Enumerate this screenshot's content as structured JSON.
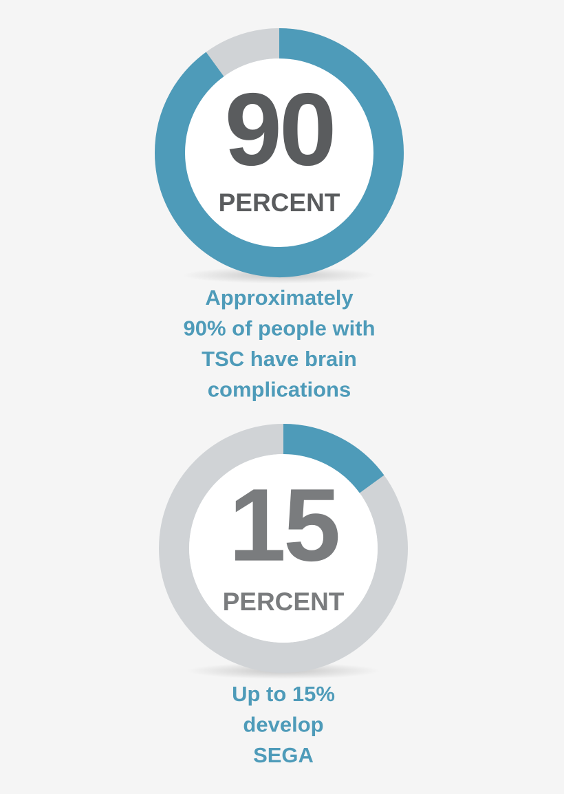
{
  "chart_data": [
    {
      "type": "donut",
      "values": [
        90
      ],
      "ylim": [
        0,
        100
      ],
      "center_label": "PERCENT",
      "caption": [
        "Approximately",
        "90% of people with",
        "TSC have brain",
        "complications"
      ],
      "color": "#4e9bb9",
      "track_color": "#d0d3d6",
      "number_color": "#5a5c5e",
      "caption_color": "#4e9bb9"
    },
    {
      "type": "donut",
      "values": [
        15
      ],
      "ylim": [
        0,
        100
      ],
      "center_label": "PERCENT",
      "caption": [
        "Up to 15%",
        "develop",
        "SEGA"
      ],
      "color": "#4e9bb9",
      "track_color": "#d0d3d6",
      "number_color": "#7a7c7e",
      "caption_color": "#4e9bb9"
    }
  ]
}
